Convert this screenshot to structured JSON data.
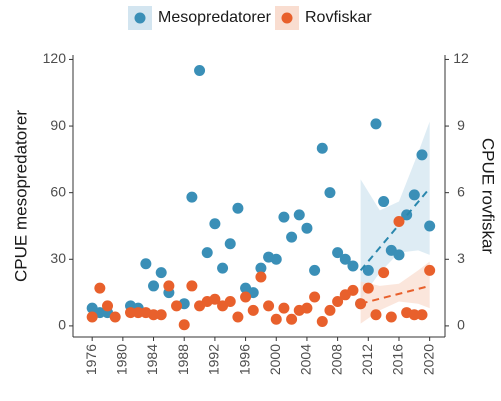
{
  "chart_data": {
    "type": "scatter",
    "ylabel": "CPUE mesopredatorer",
    "y2label": "CPUE rovfiskar",
    "xlim": [
      1973.5,
      2022
    ],
    "xticks": [
      1976,
      1980,
      1984,
      1988,
      1992,
      1996,
      2000,
      2004,
      2008,
      2012,
      2016,
      2020
    ],
    "ylim": [
      -5,
      122
    ],
    "yticks": [
      0,
      30,
      60,
      90,
      120
    ],
    "y2lim": [
      -0.5,
      12.2
    ],
    "y2ticks": [
      0,
      3,
      6,
      9,
      12
    ],
    "grid": false,
    "legend": "top",
    "series": [
      {
        "name": "Mesopredatorer",
        "color": "#3a8fb7",
        "trend_color": "#2a87ad",
        "band_color": "#d3e5f0",
        "axis": "y",
        "x": [
          1976,
          1977,
          1978,
          1981,
          1982,
          1983,
          1984,
          1985,
          1986,
          1988,
          1989,
          1990,
          1991,
          1992,
          1993,
          1994,
          1995,
          1996,
          1997,
          1998,
          1999,
          2000,
          2001,
          2002,
          2003,
          2004,
          2005,
          2006,
          2007,
          2008,
          2009,
          2010,
          2011,
          2012,
          2013,
          2014,
          2015,
          2016,
          2017,
          2018,
          2019,
          2020
        ],
        "values": [
          8,
          6,
          6,
          9,
          8,
          28,
          18,
          24,
          15,
          10,
          58,
          115,
          33,
          46,
          26,
          37,
          53,
          17,
          15,
          26,
          31,
          30,
          49,
          40,
          50,
          44,
          25,
          80,
          60,
          33,
          30,
          27,
          10,
          25,
          91,
          56,
          34,
          32,
          50,
          59,
          77,
          45
        ],
        "trend": {
          "x": [
            2011,
            2020
          ],
          "values": [
            25,
            62
          ]
        },
        "band": {
          "x": [
            2011,
            2013.5,
            2016,
            2018.5,
            2020
          ],
          "lower": [
            12,
            24,
            33,
            34,
            32
          ],
          "upper": [
            66,
            52,
            56,
            78,
            92
          ]
        }
      },
      {
        "name": "Rovfiskar",
        "color": "#e8602c",
        "trend_color": "#e8602c",
        "band_color": "#f9ddd0",
        "axis": "y2",
        "x": [
          1976,
          1977,
          1978,
          1979,
          1981,
          1982,
          1983,
          1984,
          1985,
          1986,
          1987,
          1988,
          1989,
          1990,
          1991,
          1992,
          1993,
          1994,
          1995,
          1996,
          1997,
          1998,
          1999,
          2000,
          2001,
          2002,
          2003,
          2004,
          2005,
          2006,
          2007,
          2008,
          2009,
          2010,
          2011,
          2012,
          2013,
          2014,
          2015,
          2016,
          2017,
          2018,
          2019,
          2020
        ],
        "values": [
          0.4,
          1.7,
          0.9,
          0.4,
          0.6,
          0.6,
          0.6,
          0.5,
          0.5,
          1.8,
          0.9,
          0.05,
          1.8,
          0.9,
          1.1,
          1.2,
          0.9,
          1.1,
          0.4,
          1.3,
          0.7,
          2.2,
          0.9,
          0.3,
          0.8,
          0.3,
          0.7,
          0.8,
          1.3,
          0.2,
          0.7,
          1.1,
          1.4,
          1.6,
          1.0,
          1.7,
          0.5,
          2.4,
          0.4,
          4.7,
          0.6,
          0.5,
          0.5,
          2.5
        ],
        "trend": {
          "x": [
            2011,
            2020
          ],
          "values": [
            1.0,
            1.8
          ]
        },
        "band": {
          "x": [
            2011,
            2013.5,
            2016,
            2018.5,
            2020
          ],
          "lower": [
            0.1,
            0.7,
            1.1,
            1.0,
            0.8
          ],
          "upper": [
            2.0,
            1.8,
            1.9,
            2.5,
            2.9
          ]
        }
      }
    ]
  }
}
